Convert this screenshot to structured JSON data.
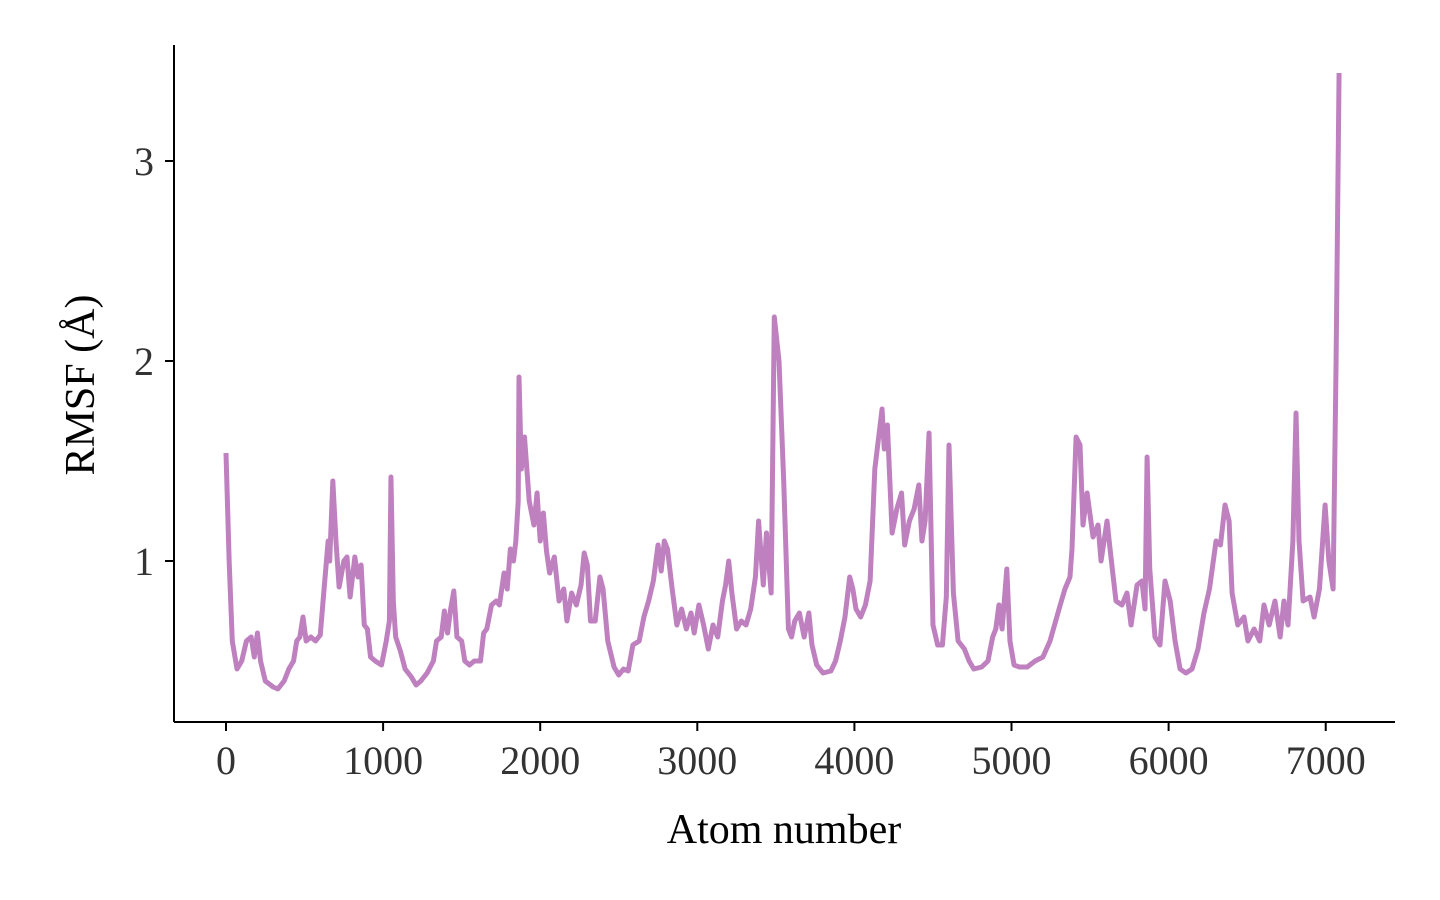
{
  "chart_data": {
    "type": "line",
    "xlabel": "Atom number",
    "ylabel": "RMSF (Å)",
    "color": "#bf80bf",
    "grid": false,
    "xlim": [
      -331,
      7441
    ],
    "ylim": [
      0.195,
      3.58
    ],
    "xticks": [
      0,
      1000,
      2000,
      3000,
      4000,
      5000,
      6000,
      7000
    ],
    "yticks": [
      1,
      2,
      3
    ],
    "x": [
      0,
      20,
      40,
      70,
      100,
      130,
      160,
      180,
      200,
      220,
      250,
      300,
      330,
      370,
      400,
      430,
      450,
      470,
      490,
      510,
      540,
      570,
      600,
      620,
      650,
      660,
      680,
      700,
      720,
      750,
      770,
      790,
      820,
      840,
      860,
      880,
      900,
      920,
      950,
      990,
      1020,
      1040,
      1050,
      1065,
      1080,
      1110,
      1140,
      1180,
      1210,
      1240,
      1280,
      1320,
      1340,
      1370,
      1390,
      1410,
      1430,
      1450,
      1470,
      1500,
      1520,
      1550,
      1580,
      1620,
      1640,
      1660,
      1690,
      1720,
      1740,
      1770,
      1790,
      1810,
      1830,
      1845,
      1860,
      1865,
      1880,
      1900,
      1930,
      1960,
      1980,
      2000,
      2020,
      2040,
      2060,
      2090,
      2120,
      2150,
      2170,
      2200,
      2230,
      2260,
      2280,
      2300,
      2320,
      2350,
      2380,
      2400,
      2430,
      2470,
      2500,
      2530,
      2560,
      2590,
      2630,
      2660,
      2690,
      2720,
      2750,
      2770,
      2790,
      2810,
      2840,
      2870,
      2900,
      2930,
      2960,
      2980,
      3010,
      3040,
      3070,
      3100,
      3130,
      3160,
      3180,
      3200,
      3220,
      3250,
      3280,
      3310,
      3340,
      3370,
      3390,
      3420,
      3440,
      3470,
      3490,
      3520,
      3550,
      3580,
      3600,
      3620,
      3650,
      3680,
      3710,
      3730,
      3760,
      3800,
      3850,
      3880,
      3910,
      3940,
      3970,
      3990,
      4010,
      4040,
      4070,
      4100,
      4130,
      4176,
      4190,
      4210,
      4240,
      4270,
      4300,
      4320,
      4350,
      4380,
      4410,
      4430,
      4450,
      4475,
      4500,
      4530,
      4560,
      4585,
      4602,
      4630,
      4660,
      4700,
      4730,
      4760,
      4810,
      4850,
      4880,
      4900,
      4920,
      4940,
      4970,
      4990,
      5016,
      5050,
      5100,
      5150,
      5200,
      5245,
      5310,
      5340,
      5372,
      5385,
      5411,
      5436,
      5455,
      5481,
      5519,
      5551,
      5570,
      5608,
      5630,
      5665,
      5703,
      5735,
      5761,
      5799,
      5830,
      5850,
      5863,
      5880,
      5913,
      5945,
      5977,
      6010,
      6041,
      6073,
      6110,
      6149,
      6187,
      6225,
      6260,
      6302,
      6330,
      6359,
      6385,
      6404,
      6440,
      6480,
      6505,
      6544,
      6580,
      6607,
      6640,
      6677,
      6710,
      6734,
      6760,
      6791,
      6811,
      6830,
      6856,
      6900,
      6926,
      6960,
      6996,
      7020,
      7047,
      7066,
      7085
    ],
    "values": [
      1.54,
      1.0,
      0.6,
      0.46,
      0.5,
      0.6,
      0.62,
      0.52,
      0.64,
      0.5,
      0.4,
      0.37,
      0.36,
      0.4,
      0.46,
      0.5,
      0.6,
      0.62,
      0.72,
      0.6,
      0.62,
      0.6,
      0.63,
      0.82,
      1.1,
      1.0,
      1.4,
      1.1,
      0.87,
      1.0,
      1.02,
      0.82,
      1.02,
      0.92,
      0.98,
      0.68,
      0.66,
      0.52,
      0.5,
      0.48,
      0.6,
      0.7,
      1.42,
      0.8,
      0.62,
      0.55,
      0.46,
      0.42,
      0.38,
      0.4,
      0.44,
      0.5,
      0.6,
      0.62,
      0.75,
      0.64,
      0.76,
      0.85,
      0.62,
      0.6,
      0.5,
      0.48,
      0.5,
      0.5,
      0.64,
      0.66,
      0.78,
      0.8,
      0.78,
      0.94,
      0.86,
      1.06,
      1.0,
      1.1,
      1.3,
      1.92,
      1.46,
      1.62,
      1.3,
      1.18,
      1.34,
      1.1,
      1.24,
      1.05,
      0.94,
      1.02,
      0.8,
      0.86,
      0.7,
      0.84,
      0.78,
      0.88,
      1.04,
      0.98,
      0.7,
      0.7,
      0.92,
      0.86,
      0.6,
      0.47,
      0.43,
      0.46,
      0.45,
      0.58,
      0.6,
      0.72,
      0.8,
      0.9,
      1.08,
      0.95,
      1.1,
      1.06,
      0.86,
      0.68,
      0.76,
      0.66,
      0.74,
      0.64,
      0.78,
      0.68,
      0.56,
      0.68,
      0.62,
      0.8,
      0.88,
      1.0,
      0.84,
      0.66,
      0.7,
      0.68,
      0.76,
      0.92,
      1.2,
      0.88,
      1.14,
      0.84,
      2.22,
      2.0,
      1.4,
      0.66,
      0.62,
      0.7,
      0.74,
      0.62,
      0.74,
      0.58,
      0.48,
      0.44,
      0.45,
      0.5,
      0.6,
      0.72,
      0.92,
      0.86,
      0.76,
      0.72,
      0.78,
      0.9,
      1.46,
      1.76,
      1.56,
      1.68,
      1.14,
      1.26,
      1.34,
      1.08,
      1.2,
      1.26,
      1.38,
      1.1,
      1.2,
      1.64,
      0.68,
      0.58,
      0.58,
      0.82,
      1.58,
      0.84,
      0.6,
      0.56,
      0.5,
      0.46,
      0.47,
      0.5,
      0.62,
      0.66,
      0.78,
      0.66,
      0.96,
      0.6,
      0.48,
      0.47,
      0.47,
      0.5,
      0.52,
      0.6,
      0.78,
      0.86,
      0.92,
      1.06,
      1.62,
      1.58,
      1.18,
      1.34,
      1.12,
      1.18,
      1.0,
      1.2,
      1.04,
      0.8,
      0.78,
      0.84,
      0.68,
      0.88,
      0.9,
      0.76,
      1.52,
      0.96,
      0.62,
      0.58,
      0.9,
      0.8,
      0.6,
      0.46,
      0.44,
      0.46,
      0.56,
      0.74,
      0.86,
      1.1,
      1.08,
      1.28,
      1.2,
      0.84,
      0.68,
      0.72,
      0.6,
      0.66,
      0.6,
      0.78,
      0.68,
      0.8,
      0.62,
      0.8,
      0.68,
      1.1,
      1.74,
      1.1,
      0.8,
      0.82,
      0.72,
      0.86,
      1.28,
      1.0,
      0.86,
      2.0,
      3.44
    ]
  }
}
